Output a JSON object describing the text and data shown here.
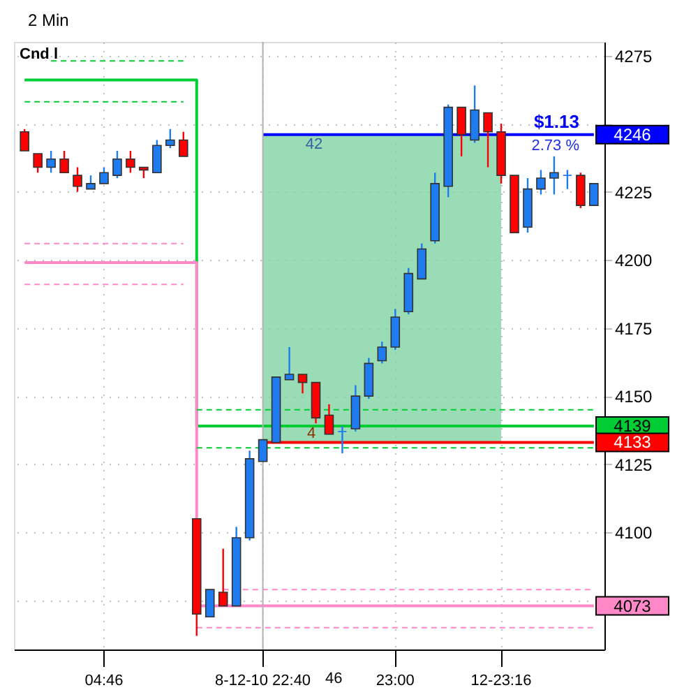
{
  "chart_data": {
    "type": "candlestick",
    "title": "2 Min",
    "categories": [
      null,
      null,
      null,
      null,
      null,
      null,
      "04:46",
      null,
      null,
      null,
      null,
      null,
      null,
      null,
      null,
      null,
      null,
      null,
      "8-12-10 22:40",
      null,
      null,
      null,
      null,
      null,
      null,
      null,
      null,
      null,
      "23:00",
      null,
      null,
      null,
      null,
      null,
      null,
      null,
      "12-23:16",
      null,
      null,
      null,
      null,
      null,
      null,
      null
    ],
    "ohlc": [
      [
        4247,
        4248,
        4240,
        4240
      ],
      [
        4239,
        4239,
        4232,
        4234
      ],
      [
        4234,
        4240,
        4232,
        4237
      ],
      [
        4237,
        4240,
        4232,
        4232
      ],
      [
        4231,
        4234,
        4225,
        4227
      ],
      [
        4226,
        4231,
        4226,
        4228
      ],
      [
        4228,
        4234,
        4228,
        4232
      ],
      [
        4231,
        4240,
        4230,
        4237
      ],
      [
        4237,
        4240,
        4232,
        4234
      ],
      [
        4234,
        4234,
        4230,
        4233
      ],
      [
        4232,
        4244,
        4232,
        4242
      ],
      [
        4242,
        4248,
        4241,
        4244
      ],
      [
        4244,
        4247,
        4238,
        4238
      ],
      [
        4105,
        4105,
        4062,
        4070
      ],
      [
        4069,
        4079,
        4069,
        4079
      ],
      [
        4078,
        4094,
        4073,
        4073
      ],
      [
        4073,
        4102,
        4073,
        4098
      ],
      [
        4098,
        4130,
        4097,
        4127
      ],
      [
        4126,
        4134,
        4126,
        4134
      ],
      [
        4133,
        4157,
        4133,
        4157
      ],
      [
        4156,
        4168,
        4156,
        4158
      ],
      [
        4158,
        4158,
        4151,
        4155
      ],
      [
        4155,
        4155,
        4140,
        4142
      ],
      [
        4143,
        4147,
        4136,
        4136
      ],
      [
        4137,
        4139,
        4129,
        4137
      ],
      [
        4138,
        4154,
        4137,
        4150
      ],
      [
        4150,
        4164,
        4149,
        4162
      ],
      [
        4163,
        4170,
        4162,
        4168
      ],
      [
        4168,
        4182,
        4167,
        4179
      ],
      [
        4181,
        4197,
        4180,
        4195
      ],
      [
        4193,
        4206,
        4193,
        4204
      ],
      [
        4207,
        4232,
        4206,
        4228
      ],
      [
        4227,
        4257,
        4223,
        4256
      ],
      [
        4256,
        4256,
        4238,
        4246
      ],
      [
        4244,
        4264,
        4243,
        4255
      ],
      [
        4254,
        4254,
        4234,
        4247
      ],
      [
        4247,
        4250,
        4228,
        4231
      ],
      [
        4231,
        4231,
        4210,
        4210
      ],
      [
        4212,
        4230,
        4210,
        4226
      ],
      [
        4226,
        4233,
        4224,
        4230
      ],
      [
        4230,
        4238,
        4224,
        4232
      ],
      [
        4231,
        4233,
        4226,
        4231
      ],
      [
        4231,
        4232,
        4219,
        4220
      ],
      [
        4220,
        4228,
        4220,
        4228
      ]
    ],
    "colors": [
      "#ff0000",
      "#ff0000",
      "#1e7cf0",
      "#ff0000",
      "#ff0000",
      "#1e7cf0",
      "#1e7cf0",
      "#1e7cf0",
      "#ff0000",
      "#ff0000",
      "#1e7cf0",
      "#1e7cf0",
      "#ff0000",
      "#ff0000",
      "#1e7cf0",
      "#ff0000",
      "#1e7cf0",
      "#1e7cf0",
      "#1e7cf0",
      "#1e7cf0",
      "#1e7cf0",
      "#ff0000",
      "#ff0000",
      "#ff0000",
      "#1e7cf0",
      "#1e7cf0",
      "#1e7cf0",
      "#1e7cf0",
      "#1e7cf0",
      "#1e7cf0",
      "#1e7cf0",
      "#1e7cf0",
      "#1e7cf0",
      "#ff0000",
      "#1e7cf0",
      "#ff0000",
      "#ff0000",
      "#ff0000",
      "#1e7cf0",
      "#1e7cf0",
      "#1e7cf0",
      "#1e7cf0",
      "#ff0000",
      "#1e7cf0"
    ],
    "series": [
      {
        "type": "line",
        "color": "#7fd3a3",
        "values": [
          null,
          null,
          null,
          null,
          null,
          null,
          null,
          null,
          null,
          null,
          null,
          null,
          null,
          null,
          null,
          null,
          null,
          null,
          null,
          null,
          null,
          null,
          null,
          null,
          null,
          null,
          null,
          null,
          null,
          null,
          null,
          null,
          null,
          null,
          null,
          null,
          null,
          null,
          null,
          null,
          null,
          null,
          null,
          null
        ],
        "lower": [
          null,
          null,
          null,
          null,
          null,
          null,
          null,
          null,
          null,
          null,
          null,
          null,
          null,
          null,
          null,
          null,
          null,
          null,
          4133,
          4133,
          4133,
          4133,
          4133,
          4133,
          4133,
          4133,
          4133,
          4133,
          4133,
          4133,
          4133,
          4133,
          4133,
          4133,
          4133,
          4133,
          4133,
          null,
          null,
          null,
          null,
          null,
          null,
          null
        ],
        "upper": [
          null,
          null,
          null,
          null,
          null,
          null,
          null,
          null,
          null,
          null,
          null,
          null,
          null,
          null,
          null,
          null,
          null,
          null,
          4246,
          4246,
          4246,
          4246,
          4246,
          4246,
          4246,
          4246,
          4246,
          4246,
          4246,
          4246,
          4246,
          4246,
          4246,
          4246,
          4246,
          4246,
          4246,
          null,
          null,
          null,
          null,
          null,
          null,
          null
        ]
      },
      {
        "type": "step",
        "color": "#00cc33",
        "line_style": "solid",
        "values": [
          4266,
          4266,
          4266,
          4266,
          4266,
          4266,
          4266,
          4266,
          4266,
          4266,
          4266,
          4266,
          4266,
          4139,
          4139,
          4139,
          4139,
          4139,
          4139,
          4139,
          4139,
          4139,
          4139,
          4139,
          4139,
          4139,
          4139,
          4139,
          4139,
          4139,
          4139,
          4139,
          4139,
          4139,
          4139,
          4139,
          4139,
          4139,
          4139,
          4139,
          4139,
          4139,
          4139,
          4139
        ],
        "value_labels": [
          null,
          null,
          null,
          null,
          null,
          null,
          null,
          null,
          null,
          null,
          null,
          null,
          null,
          null,
          null,
          null,
          null,
          null,
          null,
          null,
          null,
          null,
          null,
          null,
          null,
          null,
          null,
          null,
          null,
          null,
          null,
          null,
          null,
          null,
          null,
          null,
          null,
          null,
          null,
          null,
          null,
          null,
          null,
          "4139"
        ]
      },
      {
        "type": "step",
        "color": "#ff88c8",
        "line_style": "solid",
        "values": [
          4199,
          4199,
          4199,
          4199,
          4199,
          4199,
          4199,
          4199,
          4199,
          4199,
          4199,
          4199,
          4199,
          4073,
          4073,
          4073,
          4073,
          4073,
          4073,
          4073,
          4073,
          4073,
          4073,
          4073,
          4073,
          4073,
          4073,
          4073,
          4073,
          4073,
          4073,
          4073,
          4073,
          4073,
          4073,
          4073,
          4073,
          4073,
          4073,
          4073,
          4073,
          4073,
          4073,
          4073
        ],
        "value_labels": [
          null,
          null,
          null,
          null,
          null,
          null,
          null,
          null,
          null,
          null,
          null,
          null,
          null,
          null,
          null,
          null,
          null,
          null,
          null,
          null,
          null,
          null,
          null,
          null,
          null,
          null,
          null,
          null,
          null,
          null,
          null,
          null,
          null,
          null,
          null,
          null,
          null,
          null,
          null,
          null,
          null,
          null,
          null,
          "4073"
        ]
      },
      {
        "type": "line",
        "color": "#00cc33",
        "line_style": "dashed",
        "values": [
          null,
          null,
          4273,
          4273,
          4273,
          4273,
          4273,
          4273,
          4273,
          4273,
          4273,
          4273,
          4273,
          null,
          null,
          null,
          null,
          null,
          null,
          null,
          null,
          null,
          null,
          null,
          null,
          null,
          null,
          null,
          null,
          null,
          null,
          null,
          null,
          null,
          null,
          null,
          null,
          null,
          null,
          null,
          null,
          null,
          null,
          null
        ]
      },
      {
        "type": "line",
        "color": "#00cc33",
        "line_style": "dashed",
        "values": [
          4258,
          4258,
          4258,
          4258,
          4258,
          4258,
          4258,
          4258,
          4258,
          4258,
          4258,
          4258,
          4258,
          null,
          null,
          null,
          null,
          null,
          null,
          null,
          null,
          null,
          null,
          null,
          null,
          null,
          null,
          null,
          null,
          null,
          null,
          null,
          null,
          null,
          null,
          null,
          null,
          null,
          null,
          null,
          null,
          null,
          null,
          null
        ]
      },
      {
        "type": "line",
        "color": "#ff88c8",
        "line_style": "dashed",
        "values": [
          4206,
          4206,
          4206,
          4206,
          4206,
          4206,
          4206,
          4206,
          4206,
          4206,
          4206,
          4206,
          4206,
          null,
          null,
          null,
          null,
          null,
          null,
          null,
          null,
          null,
          null,
          null,
          null,
          null,
          null,
          null,
          null,
          null,
          null,
          null,
          null,
          null,
          null,
          null,
          null,
          null,
          null,
          null,
          null,
          null,
          null,
          null
        ]
      },
      {
        "type": "line",
        "color": "#ff88c8",
        "line_style": "dashed",
        "values": [
          4191,
          4191,
          4191,
          4191,
          4191,
          4191,
          4191,
          4191,
          4191,
          4191,
          4191,
          4191,
          4191,
          null,
          null,
          null,
          null,
          null,
          null,
          null,
          null,
          null,
          null,
          null,
          null,
          null,
          null,
          null,
          null,
          null,
          null,
          null,
          null,
          null,
          null,
          null,
          null,
          null,
          null,
          null,
          null,
          null,
          null,
          null
        ]
      },
      {
        "type": "line",
        "color": "#00cc33",
        "line_style": "dashed",
        "values": [
          null,
          null,
          null,
          null,
          null,
          null,
          null,
          null,
          null,
          null,
          null,
          null,
          null,
          4145,
          4145,
          4145,
          4145,
          4145,
          4145,
          4145,
          4145,
          4145,
          null,
          4145,
          4145,
          4145,
          4145,
          4145,
          4145,
          4145,
          4145,
          4145,
          4145,
          4145,
          4145,
          4145,
          4145,
          4145,
          4145,
          4145,
          4145,
          4145,
          4145,
          4145
        ]
      },
      {
        "type": "line",
        "color": "#00cc33",
        "line_style": "dashed",
        "values": [
          null,
          null,
          null,
          null,
          null,
          null,
          null,
          null,
          null,
          null,
          null,
          null,
          null,
          4131,
          4131,
          4131,
          4131,
          4131,
          4131,
          4131,
          4131,
          4131,
          4131,
          4131,
          4131,
          4131,
          4131,
          4131,
          4131,
          4131,
          4131,
          4131,
          4131,
          4131,
          4131,
          4131,
          4131,
          4131,
          4131,
          4131,
          4131,
          4131,
          4131,
          4131
        ]
      },
      {
        "type": "line",
        "color": "#ff88c8",
        "line_style": "dashed",
        "values": [
          null,
          null,
          null,
          null,
          null,
          null,
          null,
          null,
          null,
          null,
          null,
          null,
          null,
          null,
          null,
          4079,
          null,
          4079,
          4079,
          4079,
          4079,
          4079,
          4079,
          4079,
          4079,
          4079,
          4079,
          4079,
          4079,
          4079,
          4079,
          4079,
          4079,
          4079,
          4079,
          4079,
          4079,
          4079,
          4079,
          4079,
          4079,
          4079,
          4079,
          4079
        ]
      },
      {
        "type": "line",
        "color": "#ff88c8",
        "line_style": "dashed",
        "values": [
          null,
          null,
          null,
          null,
          null,
          null,
          null,
          null,
          null,
          null,
          null,
          null,
          null,
          4065,
          4065,
          4065,
          4065,
          4065,
          4065,
          4065,
          4065,
          4065,
          4065,
          4065,
          4065,
          4065,
          4065,
          4065,
          4065,
          4065,
          4065,
          4065,
          4065,
          4065,
          4065,
          4065,
          4065,
          4065,
          4065,
          4065,
          4065,
          4065,
          4065,
          4065
        ]
      },
      {
        "type": "line",
        "color": "#ff0000",
        "line_style": "solid",
        "values": [
          null,
          null,
          null,
          null,
          null,
          null,
          null,
          null,
          null,
          null,
          null,
          null,
          null,
          null,
          null,
          null,
          null,
          null,
          4133,
          4133,
          4133,
          4133,
          4133,
          4133,
          4133,
          4133,
          4133,
          4133,
          4133,
          4133,
          4133,
          4133,
          4133,
          4133,
          4133,
          4133,
          4133,
          4133,
          4133,
          4133,
          4133,
          4133,
          4133,
          4133
        ],
        "value_labels": [
          null,
          null,
          null,
          null,
          null,
          null,
          null,
          null,
          null,
          null,
          null,
          null,
          null,
          null,
          null,
          null,
          null,
          null,
          null,
          null,
          null,
          null,
          null,
          null,
          null,
          null,
          null,
          null,
          null,
          null,
          null,
          null,
          null,
          null,
          null,
          null,
          null,
          null,
          null,
          null,
          null,
          null,
          null,
          "4133"
        ]
      },
      {
        "type": "line",
        "color": "#0000ff",
        "line_style": "solid",
        "values": [
          null,
          null,
          null,
          null,
          null,
          null,
          null,
          null,
          null,
          null,
          null,
          null,
          null,
          null,
          null,
          null,
          null,
          null,
          4246,
          4246,
          4246,
          4246,
          4246,
          4246,
          4246,
          4246,
          4246,
          4246,
          4246,
          4246,
          4246,
          4246,
          4246,
          4246,
          4246,
          4246,
          4246,
          4246,
          4246,
          4246,
          4246,
          4246,
          4246,
          4246
        ],
        "value_labels": [
          null,
          null,
          null,
          null,
          null,
          null,
          null,
          null,
          null,
          null,
          null,
          null,
          null,
          null,
          null,
          null,
          null,
          null,
          null,
          null,
          null,
          null,
          null,
          null,
          null,
          null,
          null,
          null,
          null,
          null,
          null,
          null,
          null,
          null,
          null,
          null,
          null,
          null,
          null,
          null,
          null,
          null,
          null,
          "4246"
        ]
      }
    ],
    "ylim": [
      4057,
      4280
    ],
    "yticks": [
      {
        "value": 4075,
        "label": null
      },
      4100,
      4125,
      4150,
      4175,
      4200,
      4225,
      {
        "value": 4250,
        "label": null
      },
      4275
    ],
    "grid": true,
    "ref_lines": [
      {
        "axis": "x",
        "value": "8-12-10 22:40",
        "color": "#b0b0b0"
      }
    ],
    "annotations": [
      "Cnd l",
      "46",
      {
        "text": "42",
        "y": 4246
      },
      {
        "text": "4",
        "y": 4133
      },
      {
        "text": "$1.13",
        "y": 4246
      },
      {
        "text": "2.73 %",
        "y": 4246
      }
    ]
  }
}
